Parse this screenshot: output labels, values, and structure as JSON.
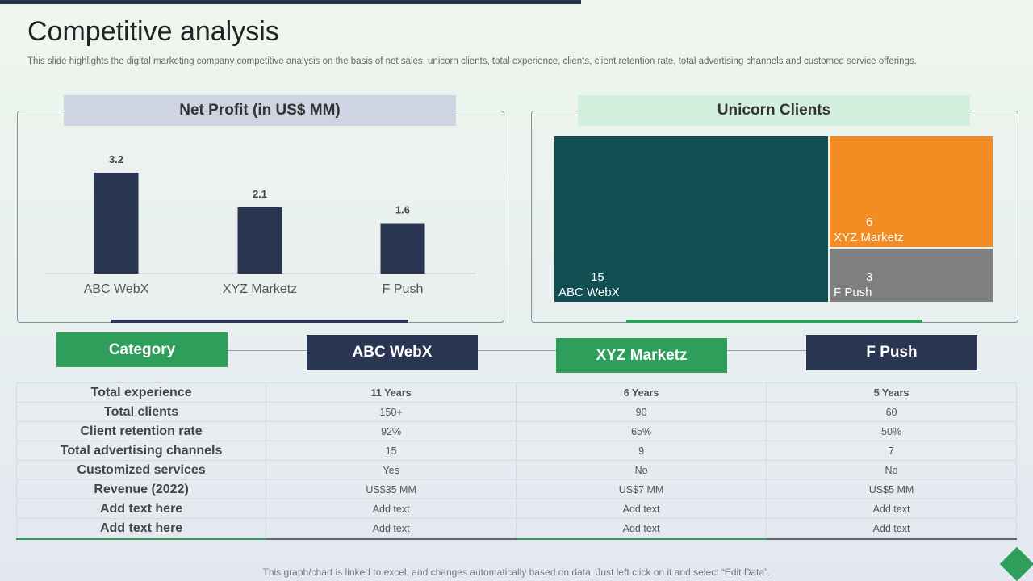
{
  "title": "Competitive analysis",
  "subtitle": "This slide highlights the digital marketing company competitive analysis on the basis of net sales, unicorn clients, total experience, clients, client retention rate, total advertising channels and customed service offerings.",
  "colors": {
    "navy": "#2a3552",
    "green": "#2e9e5b",
    "teal": "#114f52",
    "orange": "#f28c23",
    "gray": "#7f7f7f"
  },
  "chart_data": [
    {
      "type": "bar",
      "title": "Net Profit (in US$ MM)",
      "categories": [
        "ABC WebX",
        "XYZ Marketz",
        "F Push"
      ],
      "values": [
        3.2,
        2.1,
        1.6
      ],
      "value_labels": [
        "3.2",
        "2.1",
        "1.6"
      ],
      "ylim": [
        0,
        3.2
      ],
      "xlabel": "",
      "ylabel": "",
      "grid": false
    },
    {
      "type": "treemap",
      "title": "Unicorn Clients",
      "categories": [
        "ABC WebX",
        "XYZ Marketz",
        "F Push"
      ],
      "values": [
        15,
        6,
        3
      ],
      "value_labels": [
        "15",
        "6",
        "3"
      ]
    }
  ],
  "table": {
    "headers": [
      "Category",
      "ABC WebX",
      "XYZ Marketz",
      "F Push"
    ],
    "rows": [
      [
        "Total experience",
        "11 Years",
        "6 Years",
        "5 Years"
      ],
      [
        "Total clients",
        "150+",
        "90",
        "60"
      ],
      [
        "Client retention rate",
        "92%",
        "65%",
        "50%"
      ],
      [
        "Total advertising channels",
        "15",
        "9",
        "7"
      ],
      [
        "Customized services",
        "Yes",
        "No",
        "No"
      ],
      [
        "Revenue (2022)",
        "US$35 MM",
        "US$7 MM",
        "US$5 MM"
      ],
      [
        "Add text here",
        "Add text",
        "Add text",
        "Add text"
      ],
      [
        "Add text here",
        "Add text",
        "Add text",
        "Add text"
      ]
    ]
  },
  "footer": "This graph/chart is linked to excel,  and changes automatically based on data. Just left click on it and select “Edit Data”."
}
